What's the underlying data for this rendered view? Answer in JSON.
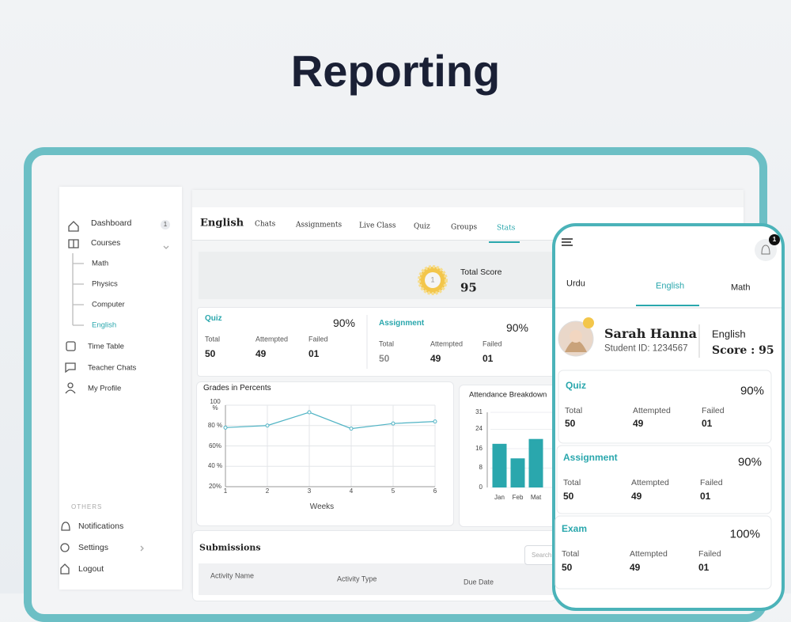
{
  "header": {
    "title": "Reporting"
  },
  "sidebar": {
    "dashboard": "Dashboard",
    "badge": "1",
    "courses": "Courses",
    "course_list": [
      "Math",
      "Physics",
      "Computer",
      "English"
    ],
    "links": [
      "Time Table",
      "Teacher Chats",
      "My Profile"
    ],
    "others": "OTHERS",
    "bottom": [
      "Notifications",
      "Settings",
      "Logout"
    ]
  },
  "tabs": {
    "course": "English",
    "items": [
      "Chats",
      "Assignments",
      "Live Class",
      "Quiz",
      "Groups",
      "Stats"
    ]
  },
  "score": {
    "medal": "1",
    "label": "Total Score",
    "value": "95"
  },
  "stats": [
    {
      "title": "Quiz",
      "percent": "90%",
      "cells": [
        [
          "Total",
          "50"
        ],
        [
          "Attempted",
          "49"
        ],
        [
          "Failed",
          "01"
        ]
      ]
    },
    {
      "title": "Assignment",
      "percent": "90%",
      "cells": [
        [
          "Total",
          "50"
        ],
        [
          "Attempted",
          "49"
        ],
        [
          "Failed",
          "01"
        ]
      ]
    }
  ],
  "grades_chart": {
    "type": "line",
    "title": "Grades in Percents",
    "x_label": "Weeks",
    "x": [
      1,
      2,
      3,
      4,
      5,
      6
    ],
    "values": [
      78,
      80,
      93,
      77,
      82,
      84
    ],
    "color": "#4fb3c4",
    "xlim": [
      1,
      6
    ],
    "xticks": [
      1,
      2,
      3,
      4,
      5,
      6
    ],
    "ylim": [
      20,
      100
    ],
    "yticks": [
      {
        "value": 100,
        "label": "100 %"
      },
      {
        "value": 80,
        "label": "80 %"
      },
      {
        "value": 60,
        "label": "60%"
      },
      {
        "value": 40,
        "label": "40 %"
      },
      {
        "value": 20,
        "label": "20%"
      }
    ],
    "grid": true
  },
  "attendance_chart": {
    "type": "bar",
    "title": "Attendance Breakdown",
    "categories": [
      "Jan",
      "Feb",
      "Mat"
    ],
    "values": [
      18,
      12,
      20
    ],
    "color": "#2aa7ad",
    "ylim": [
      0,
      31
    ],
    "yticks": [
      0,
      8,
      16,
      24,
      31
    ],
    "grid": true
  },
  "submissions": {
    "title": "Submissions",
    "search": "Search",
    "columns": [
      "Activity Name",
      "Activity Type",
      "Due Date"
    ]
  },
  "phone": {
    "badge": "1",
    "tabs": [
      "Urdu",
      "English",
      "Math"
    ],
    "name": "Sarah Hanna",
    "student_id": "Student ID: 1234567",
    "course": "English",
    "score": "Score : 95",
    "stats": [
      {
        "title": "Quiz",
        "percent": "90%",
        "cells": [
          [
            "Total",
            "50"
          ],
          [
            "Attempted",
            "49"
          ],
          [
            "Failed",
            "01"
          ]
        ]
      },
      {
        "title": "Assignment",
        "percent": "90%",
        "cells": [
          [
            "Total",
            "50"
          ],
          [
            "Attempted",
            "49"
          ],
          [
            "Failed",
            "01"
          ]
        ]
      },
      {
        "title": "Exam",
        "percent": "100%",
        "cells": [
          [
            "Total",
            "50"
          ],
          [
            "Attempted",
            "49"
          ],
          [
            "Failed",
            "01"
          ]
        ]
      }
    ]
  }
}
